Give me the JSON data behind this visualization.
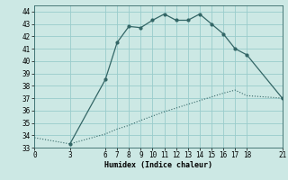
{
  "xlabel": "Humidex (Indice chaleur)",
  "ylabel": "",
  "bg_color": "#cce8e4",
  "grid_color": "#99cccc",
  "line_color": "#336666",
  "ylim": [
    33,
    44.5
  ],
  "xlim": [
    0,
    21
  ],
  "yticks": [
    33,
    34,
    35,
    36,
    37,
    38,
    39,
    40,
    41,
    42,
    43,
    44
  ],
  "xticks": [
    0,
    3,
    6,
    7,
    8,
    9,
    10,
    11,
    12,
    13,
    14,
    15,
    16,
    17,
    18,
    21
  ],
  "line1_x": [
    0,
    3,
    6,
    7,
    8,
    9,
    10,
    11,
    12,
    13,
    14,
    15,
    16,
    17,
    18,
    21
  ],
  "line1_y": [
    33.8,
    33.3,
    34.1,
    34.5,
    34.8,
    35.2,
    35.55,
    35.9,
    36.2,
    36.5,
    36.8,
    37.1,
    37.4,
    37.65,
    37.2,
    37.0
  ],
  "line2_x": [
    3,
    6,
    7,
    8,
    9,
    10,
    11,
    12,
    13,
    14,
    15,
    16,
    17,
    18,
    21
  ],
  "line2_y": [
    33.3,
    38.5,
    41.5,
    42.8,
    42.7,
    43.3,
    43.8,
    43.3,
    43.3,
    43.8,
    43.0,
    42.2,
    41.0,
    40.5,
    37.0
  ]
}
